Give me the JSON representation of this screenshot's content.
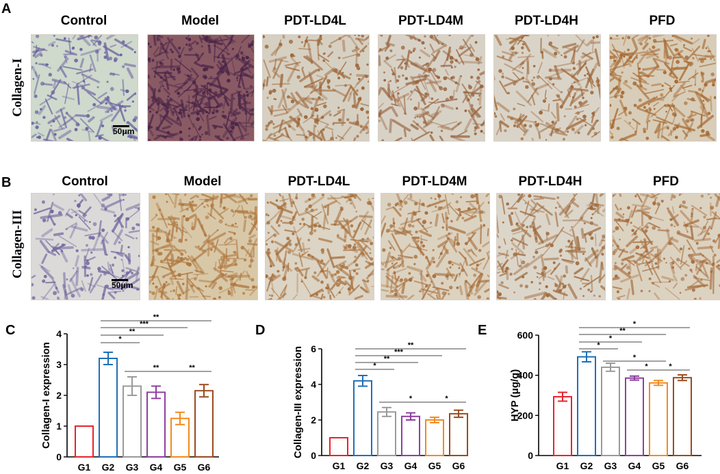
{
  "panels": {
    "A": {
      "letter": "A",
      "row_label": "Collagen-I",
      "scale_label": "50μm",
      "columns": [
        "Control",
        "Model",
        "PDT-LD4L",
        "PDT-LD4M",
        "PDT-LD4H",
        "PFD"
      ],
      "tints": [
        {
          "bg": "#cfd9cc",
          "cell": "#6b63a0",
          "density": 0.3
        },
        {
          "bg": "#8a5a64",
          "cell": "#4a2548",
          "density": 0.85
        },
        {
          "bg": "#d6d0c2",
          "cell": "#a0683a",
          "density": 0.45
        },
        {
          "bg": "#d8d2c6",
          "cell": "#9a6540",
          "density": 0.45
        },
        {
          "bg": "#dad4c8",
          "cell": "#a06a3c",
          "density": 0.4
        },
        {
          "bg": "#d8cdb8",
          "cell": "#a86a32",
          "density": 0.55
        }
      ]
    },
    "B": {
      "letter": "B",
      "row_label": "Collagen-III",
      "scale_label": "50μm",
      "columns": [
        "Control",
        "Model",
        "PDT-LD4L",
        "PDT-LD4M",
        "PDT-LD4H",
        "PFD"
      ],
      "tints": [
        {
          "bg": "#dcdad8",
          "cell": "#7068a0",
          "density": 0.3
        },
        {
          "bg": "#d8c8a8",
          "cell": "#b07840",
          "density": 0.65
        },
        {
          "bg": "#dcd4c4",
          "cell": "#a8703c",
          "density": 0.55
        },
        {
          "bg": "#dcd2c0",
          "cell": "#a8703c",
          "density": 0.55
        },
        {
          "bg": "#dcd6ca",
          "cell": "#a06a3c",
          "density": 0.45
        },
        {
          "bg": "#dcd2c0",
          "cell": "#a87040",
          "density": 0.5
        }
      ]
    }
  },
  "chart_data": [
    {
      "panel": "C",
      "type": "bar",
      "ylabel": "Collagen-I expression",
      "categories": [
        "G1",
        "G2",
        "G3",
        "G4",
        "G5",
        "G6"
      ],
      "values": [
        1.0,
        3.2,
        2.3,
        2.1,
        1.25,
        2.15
      ],
      "errors": [
        0,
        0.2,
        0.3,
        0.2,
        0.2,
        0.2
      ],
      "ylim": [
        0,
        4
      ],
      "yticks": [
        "0",
        "1",
        "2",
        "3",
        "4"
      ],
      "colors": [
        "#e8232a",
        "#1f6fb6",
        "#9a9a9a",
        "#8e3fa0",
        "#f28a1e",
        "#9a4a1e"
      ],
      "significance": [
        {
          "from": 1,
          "to": 2,
          "label": "*"
        },
        {
          "from": 1,
          "to": 3,
          "label": "**"
        },
        {
          "from": 1,
          "to": 4,
          "label": "***"
        },
        {
          "from": 1,
          "to": 5,
          "label": "**"
        },
        {
          "from": 2,
          "to": 4,
          "label": "**"
        },
        {
          "from": 4,
          "to": 5,
          "label": "**"
        }
      ]
    },
    {
      "panel": "D",
      "type": "bar",
      "ylabel": "Collagen-III expression",
      "categories": [
        "G1",
        "G2",
        "G3",
        "G4",
        "G5",
        "G6"
      ],
      "values": [
        1.0,
        4.2,
        2.45,
        2.2,
        2.0,
        2.35
      ],
      "errors": [
        0,
        0.3,
        0.25,
        0.2,
        0.15,
        0.2
      ],
      "ylim": [
        0,
        6
      ],
      "yticks": [
        "0",
        "2",
        "4",
        "6"
      ],
      "colors": [
        "#e8232a",
        "#1f6fb6",
        "#9a9a9a",
        "#8e3fa0",
        "#f28a1e",
        "#9a4a1e"
      ],
      "significance": [
        {
          "from": 1,
          "to": 2,
          "label": "*"
        },
        {
          "from": 1,
          "to": 3,
          "label": "**"
        },
        {
          "from": 1,
          "to": 4,
          "label": "***"
        },
        {
          "from": 1,
          "to": 5,
          "label": "**"
        },
        {
          "from": 2,
          "to": 4,
          "label": "*"
        },
        {
          "from": 4,
          "to": 5,
          "label": "*"
        }
      ]
    },
    {
      "panel": "E",
      "type": "bar",
      "ylabel": "HYP (μg/g)",
      "categories": [
        "G1",
        "G2",
        "G3",
        "G4",
        "G5",
        "G6"
      ],
      "values": [
        293,
        492,
        440,
        386,
        362,
        388
      ],
      "errors": [
        22,
        25,
        20,
        10,
        12,
        14
      ],
      "ylim": [
        0,
        600
      ],
      "yticks": [
        "0",
        "200",
        "400",
        "600"
      ],
      "colors": [
        "#e8232a",
        "#1f6fb6",
        "#9a9a9a",
        "#8e3fa0",
        "#f28a1e",
        "#9a4a1e"
      ],
      "significance": [
        {
          "from": 1,
          "to": 2,
          "label": "*"
        },
        {
          "from": 1,
          "to": 3,
          "label": "*"
        },
        {
          "from": 1,
          "to": 4,
          "label": "**"
        },
        {
          "from": 1,
          "to": 5,
          "label": "*"
        },
        {
          "from": 2,
          "to": 4,
          "label": "*"
        },
        {
          "from": 3,
          "to": 4,
          "label": "*"
        },
        {
          "from": 4,
          "to": 5,
          "label": "*"
        }
      ]
    }
  ]
}
